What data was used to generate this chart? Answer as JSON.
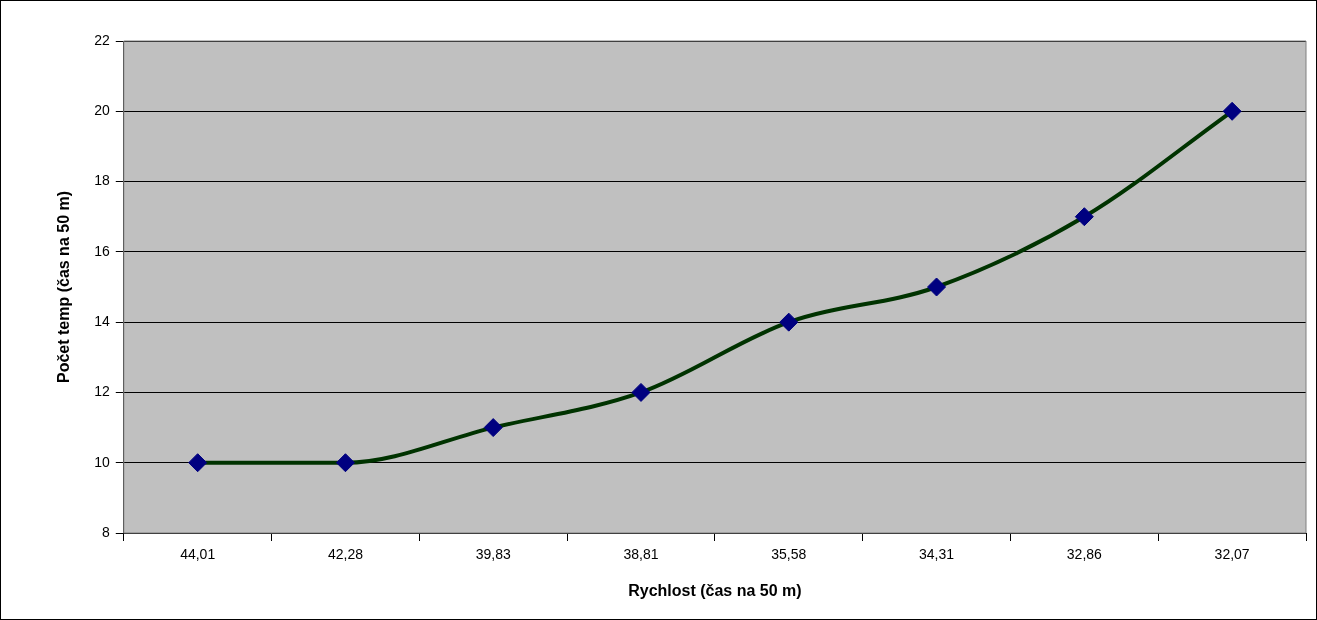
{
  "chart_data": {
    "type": "line",
    "xlabel": "Rychlost (čas na 50 m)",
    "ylabel": "Počet temp (čas na 50 m)",
    "categories": [
      "44,01",
      "42,28",
      "39,83",
      "38,81",
      "35,58",
      "34,31",
      "32,86",
      "32,07"
    ],
    "series": [
      {
        "color": "#003300",
        "values": [
          10,
          10,
          11,
          12,
          14,
          15,
          17,
          20
        ]
      }
    ],
    "ylim": [
      8,
      22
    ],
    "yticks": [
      8,
      10,
      12,
      14,
      16,
      18,
      20,
      22
    ],
    "grid": "y",
    "legend": false,
    "marker": "diamond",
    "line_style": "solid"
  }
}
